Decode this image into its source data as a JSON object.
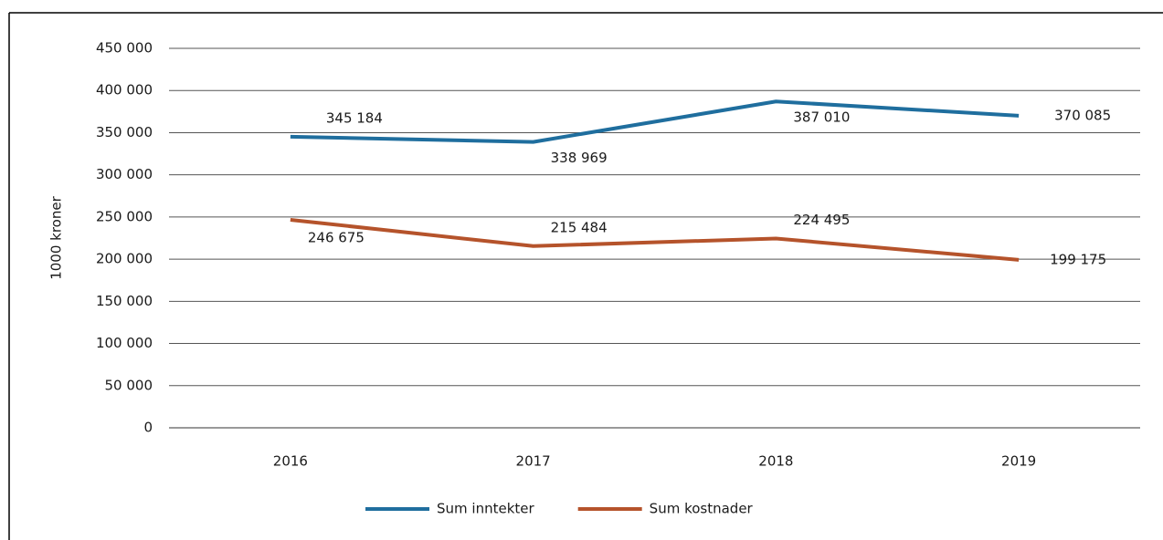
{
  "chart_data": {
    "type": "line",
    "y_label": "1000 kroner",
    "categories": [
      "2016",
      "2017",
      "2018",
      "2019"
    ],
    "series": [
      {
        "name": "Sum inntekter",
        "color": "#1f6e9e",
        "values": [
          345184,
          338969,
          387010,
          370085
        ],
        "value_labels": [
          "345 184",
          "338 969",
          "387 010",
          "370 085"
        ]
      },
      {
        "name": "Sum kostnader",
        "color": "#b5532b",
        "values": [
          246675,
          215484,
          224495,
          199175
        ],
        "value_labels": [
          "246 675",
          "215 484",
          "224 495",
          "199 175"
        ]
      }
    ],
    "ylim": [
      0,
      450000
    ],
    "yticks": [
      0,
      {
        "value": 50000,
        "label": "50 000"
      },
      {
        "value": 100000,
        "label": "100 000"
      },
      {
        "value": 150000,
        "label": "150 000"
      },
      {
        "value": 200000,
        "label": "200 000"
      },
      {
        "value": 250000,
        "label": "250 000"
      },
      {
        "value": 300000,
        "label": "300 000"
      },
      {
        "value": 350000,
        "label": "350 000"
      },
      {
        "value": 400000,
        "label": "400 000"
      },
      {
        "value": 450000,
        "label": "450 000"
      }
    ],
    "grid": true,
    "legend": "bottom"
  }
}
